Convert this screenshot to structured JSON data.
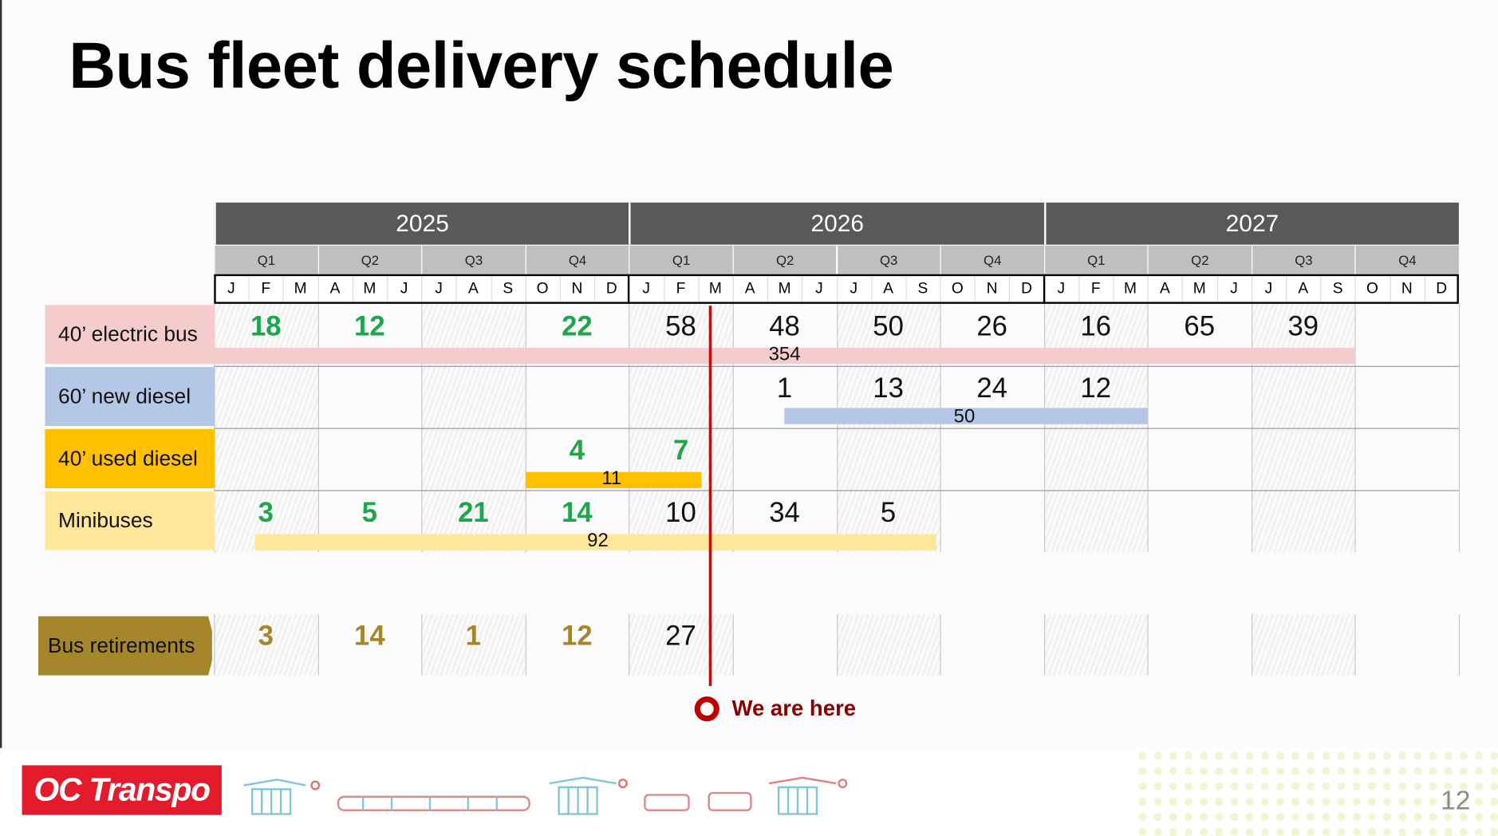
{
  "title": "Bus fleet delivery schedule",
  "years": [
    "2025",
    "2026",
    "2027"
  ],
  "quarters": [
    "Q1",
    "Q2",
    "Q3",
    "Q4"
  ],
  "months": [
    "J",
    "F",
    "M",
    "A",
    "M",
    "J",
    "J",
    "A",
    "S",
    "O",
    "N",
    "D"
  ],
  "colors": {
    "highlight_green": "#1ea64b",
    "retirement_gold": "#a6862a",
    "current_marker": "#e00000"
  },
  "rows": [
    {
      "label": "40’ electric bus",
      "color": "#f4cccc",
      "values": [
        [
          "18",
          true
        ],
        [
          "12",
          true
        ],
        null,
        [
          "22",
          true
        ],
        [
          "58",
          false
        ],
        [
          "48",
          false
        ],
        [
          "50",
          false
        ],
        [
          "26",
          false
        ],
        [
          "16",
          false
        ],
        [
          "65",
          false
        ],
        [
          "39",
          false
        ],
        null
      ],
      "total": "354",
      "bar_color": "#f4cccc",
      "bar_months": [
        0,
        33
      ],
      "total_month": 16.5
    },
    {
      "label": "60’ new diesel",
      "color": "#b4c7e7",
      "values": [
        null,
        null,
        null,
        null,
        null,
        [
          "1",
          false
        ],
        [
          "13",
          false
        ],
        [
          "24",
          false
        ],
        [
          "12",
          false
        ],
        null,
        null,
        null
      ],
      "total": "50",
      "bar_color": "#b4c7e7",
      "bar_months": [
        16.5,
        27
      ],
      "total_month": 21.7
    },
    {
      "label": "40’ used diesel",
      "color": "#ffc000",
      "values": [
        null,
        null,
        null,
        [
          "4",
          true
        ],
        [
          "7",
          true
        ],
        null,
        null,
        null,
        null,
        null,
        null,
        null
      ],
      "total": "11",
      "bar_color": "#ffc000",
      "bar_months": [
        9,
        14.1
      ],
      "total_month": 11.5
    },
    {
      "label": "Minibuses",
      "color": "#ffe699",
      "values": [
        [
          "3",
          true
        ],
        [
          "5",
          true
        ],
        [
          "21",
          true
        ],
        [
          "14",
          true
        ],
        [
          "10",
          false
        ],
        [
          "34",
          false
        ],
        [
          "5",
          false
        ],
        null,
        null,
        null,
        null,
        null
      ],
      "total": "92",
      "bar_color": "#ffe699",
      "bar_months": [
        1.2,
        20.9
      ],
      "total_month": 11.1
    }
  ],
  "retirements": {
    "label": "Bus retirements",
    "color": "#a6862a",
    "values": [
      [
        "3",
        true
      ],
      [
        "14",
        true
      ],
      [
        "1",
        true
      ],
      [
        "12",
        true
      ],
      [
        "27",
        false
      ],
      null,
      null,
      null,
      null,
      null,
      null,
      null
    ]
  },
  "current_marker": {
    "label": "We are here",
    "month_position": 14.3
  },
  "footer": {
    "logo_text": "OC Transpo",
    "page_number": "12",
    "icons": [
      "station-icon",
      "train-icon",
      "station-icon",
      "bus-icon",
      "minibus-icon",
      "station-icon"
    ]
  }
}
